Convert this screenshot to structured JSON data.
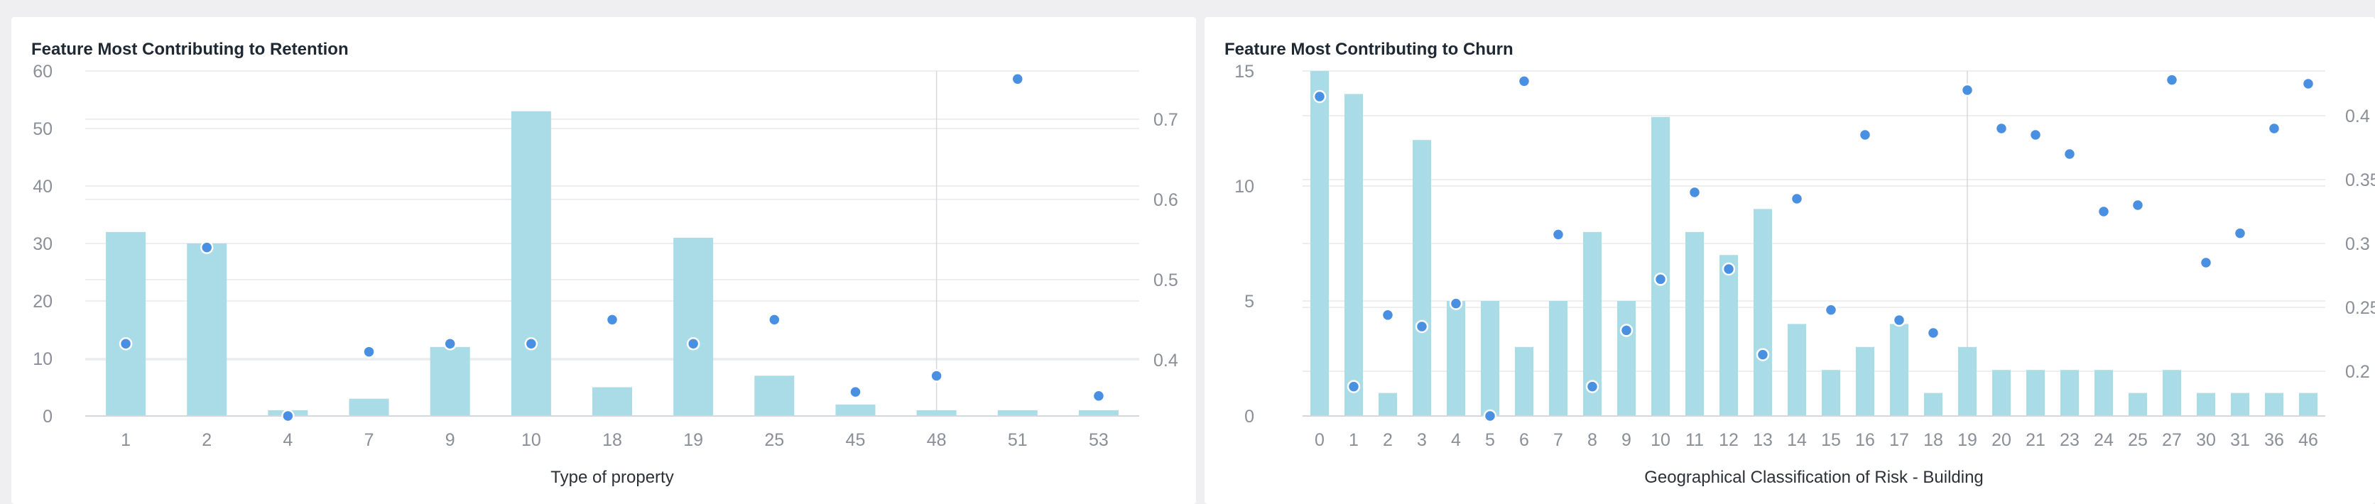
{
  "chart_data": [
    {
      "type": "bar",
      "title": "Feature Most Contributing to Retention",
      "xlabel": "Type of property",
      "categories": [
        "1",
        "2",
        "4",
        "7",
        "9",
        "10",
        "18",
        "19",
        "25",
        "45",
        "48",
        "51",
        "53"
      ],
      "series": [
        {
          "axis": "left",
          "mark": "bar",
          "color": "#a9dce6",
          "values": [
            32,
            30,
            1,
            3,
            12,
            53,
            5,
            31,
            7,
            2,
            1,
            1,
            1
          ]
        },
        {
          "axis": "right",
          "mark": "point",
          "color": "#4a90e2",
          "values": [
            0.42,
            0.54,
            0.33,
            0.41,
            0.42,
            0.42,
            0.45,
            0.42,
            0.45,
            0.36,
            0.38,
            0.75,
            0.355
          ]
        }
      ],
      "ylim": [
        0,
        60
      ],
      "yticks": [
        0,
        10,
        20,
        30,
        40,
        50,
        60
      ],
      "y2lim": [
        0.33,
        0.76
      ],
      "y2ticks": [
        "0.4",
        "0.5",
        "0.6",
        "0.7"
      ],
      "y2tick_values": [
        0.4,
        0.5,
        0.6,
        0.7
      ],
      "grid": true
    },
    {
      "type": "bar",
      "title": "Feature Most Contributing to Churn",
      "xlabel": "Geographical Classification of Risk - Building",
      "categories": [
        "0",
        "1",
        "2",
        "3",
        "4",
        "5",
        "6",
        "7",
        "8",
        "9",
        "10",
        "11",
        "12",
        "13",
        "14",
        "15",
        "16",
        "17",
        "18",
        "19",
        "20",
        "21",
        "23",
        "24",
        "25",
        "27",
        "30",
        "31",
        "36",
        "46"
      ],
      "series": [
        {
          "axis": "left",
          "mark": "bar",
          "color": "#a9dce6",
          "values": [
            15,
            14,
            1,
            12,
            5,
            5,
            3,
            5,
            8,
            5,
            13,
            8,
            7,
            9,
            4,
            2,
            3,
            4,
            1,
            3,
            2,
            2,
            2,
            2,
            1,
            2,
            1,
            1,
            1,
            1
          ]
        },
        {
          "axis": "right",
          "mark": "point",
          "color": "#4a90e2",
          "values": [
            0.415,
            0.188,
            0.244,
            0.235,
            0.253,
            0.165,
            0.427,
            0.307,
            0.188,
            0.232,
            0.272,
            0.34,
            0.28,
            0.213,
            0.335,
            0.248,
            0.385,
            0.24,
            0.23,
            0.42,
            0.39,
            0.385,
            0.37,
            0.325,
            0.33,
            0.428,
            0.285,
            0.308,
            0.39,
            0.425
          ]
        }
      ],
      "ylim": [
        0,
        15
      ],
      "yticks": [
        0,
        5,
        10,
        15
      ],
      "y2lim": [
        0.165,
        0.435
      ],
      "y2ticks": [
        "0.2",
        "0.25",
        "0.3",
        "0.35",
        "0.4"
      ],
      "y2tick_values": [
        0.2,
        0.25,
        0.3,
        0.35,
        0.4
      ],
      "grid": true
    }
  ]
}
